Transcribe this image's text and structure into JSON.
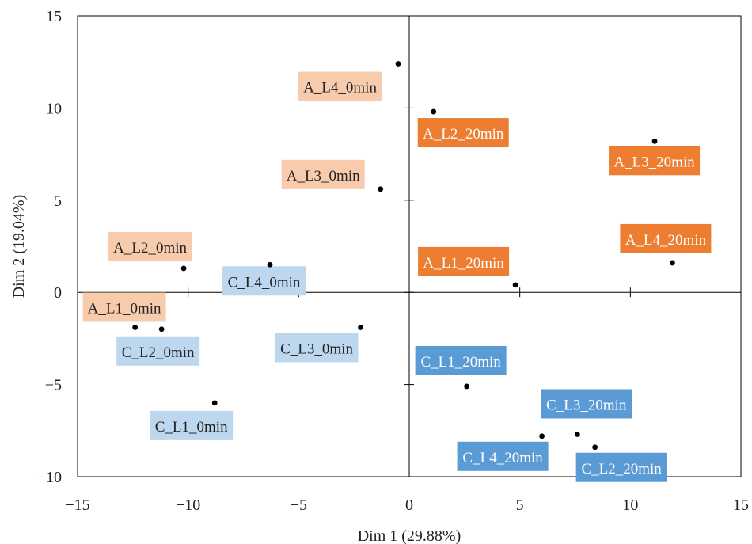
{
  "chart_data": {
    "type": "scatter",
    "title": "",
    "xlabel": "Dim 1 (29.88%)",
    "ylabel": "Dim 2 (19.04%)",
    "xlim": [
      -15,
      15
    ],
    "ylim": [
      -10,
      15
    ],
    "xticks": [
      -15,
      -10,
      -5,
      0,
      5,
      10,
      15
    ],
    "yticks": [
      -10,
      -5,
      0,
      5,
      10,
      15
    ],
    "grid": false,
    "legend": "none",
    "colors": {
      "A_0min": "#F8CBAD",
      "A_20min": "#ED7D31",
      "C_0min": "#BDD7EE",
      "C_20min": "#5B9BD5"
    },
    "points": [
      {
        "label": "A_L1_0min",
        "x": -12.4,
        "y": -1.9,
        "group": "A_0min"
      },
      {
        "label": "A_L2_0min",
        "x": -10.2,
        "y": 1.3,
        "group": "A_0min"
      },
      {
        "label": "A_L3_0min",
        "x": -1.3,
        "y": 5.6,
        "group": "A_0min"
      },
      {
        "label": "A_L4_0min",
        "x": -0.5,
        "y": 12.4,
        "group": "A_0min"
      },
      {
        "label": "A_L1_20min",
        "x": 4.8,
        "y": 0.4,
        "group": "A_20min"
      },
      {
        "label": "A_L2_20min",
        "x": 1.1,
        "y": 9.8,
        "group": "A_20min"
      },
      {
        "label": "A_L3_20min",
        "x": 11.1,
        "y": 8.2,
        "group": "A_20min"
      },
      {
        "label": "A_L4_20min",
        "x": 11.9,
        "y": 1.6,
        "group": "A_20min"
      },
      {
        "label": "C_L1_0min",
        "x": -8.8,
        "y": -6.0,
        "group": "C_0min"
      },
      {
        "label": "C_L2_0min",
        "x": -11.2,
        "y": -2.0,
        "group": "C_0min"
      },
      {
        "label": "C_L3_0min",
        "x": -2.2,
        "y": -1.9,
        "group": "C_0min"
      },
      {
        "label": "C_L4_0min",
        "x": -6.3,
        "y": 1.5,
        "group": "C_0min"
      },
      {
        "label": "C_L1_20min",
        "x": 2.6,
        "y": -5.1,
        "group": "C_20min"
      },
      {
        "label": "C_L2_20min",
        "x": 8.4,
        "y": -8.4,
        "group": "C_20min"
      },
      {
        "label": "C_L3_20min",
        "x": 7.6,
        "y": -7.7,
        "group": "C_20min"
      },
      {
        "label": "C_L4_20min",
        "x": 6.0,
        "y": -7.8,
        "group": "C_20min"
      }
    ]
  }
}
